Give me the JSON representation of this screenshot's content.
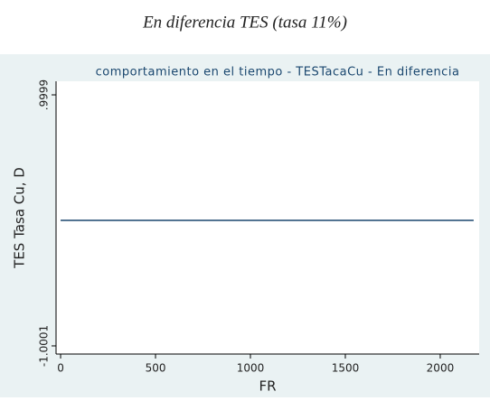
{
  "caption": "En diferencia TES (tasa 11%)",
  "chart_data": {
    "type": "line",
    "title": "comportamiento en el tiempo - TESTacaCu - En diferencia",
    "x_label": "FR",
    "y_label": "TES Tasa Cu, D",
    "x": [
      0,
      2176
    ],
    "series": [
      {
        "color": "#1a476f",
        "values": [
          -0.0001,
          -0.0001
        ]
      }
    ],
    "xlim": [
      -24,
      2205
    ],
    "xticks": [
      0,
      500,
      1000,
      1500,
      2000
    ],
    "ylim": [
      -1.065,
      1.108
    ],
    "yticks": [
      {
        "value": -1.0001,
        "label": "-1.0001"
      },
      {
        "value": 0.9999,
        "label": ".9999"
      }
    ],
    "grid": false
  }
}
